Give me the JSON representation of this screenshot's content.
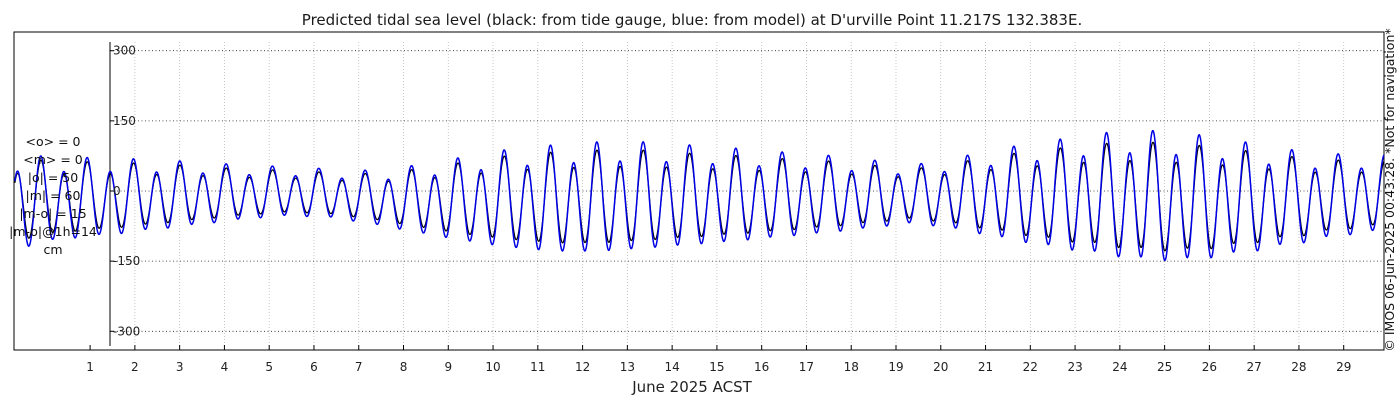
{
  "chart_data": {
    "type": "line",
    "title": "Predicted tidal sea level (black: from tide gauge, blue: from model) at D'urville Point 11.217S 132.383E.",
    "xlabel": "June 2025 ACST",
    "ylabel": "",
    "xlim": [
      -0.7,
      29.9
    ],
    "ylim": [
      -340,
      340
    ],
    "y_ticks": [
      300,
      150,
      0,
      -150,
      -300
    ],
    "y_tick_labels": [
      "300",
      "150",
      "0",
      "-150",
      "-300"
    ],
    "x_ticks": [
      1,
      2,
      3,
      4,
      5,
      6,
      7,
      8,
      9,
      10,
      11,
      12,
      13,
      14,
      15,
      16,
      17,
      18,
      19,
      20,
      21,
      22,
      23,
      24,
      25,
      26,
      27,
      28,
      29
    ],
    "x_tick_labels": [
      "1",
      "2",
      "3",
      "4",
      "5",
      "6",
      "7",
      "8",
      "9",
      "10",
      "11",
      "12",
      "13",
      "14",
      "15",
      "16",
      "17",
      "18",
      "19",
      "20",
      "21",
      "22",
      "23",
      "24",
      "25",
      "26",
      "27",
      "28",
      "29"
    ],
    "grid": true,
    "series": [
      {
        "name": "tide gauge",
        "color": "#000000",
        "high_per_day": [
          60,
          56,
          55,
          52,
          48,
          42,
          40,
          35,
          32,
          42,
          55,
          68,
          74,
          78,
          78,
          72,
          68,
          62,
          58,
          50,
          42,
          55,
          70,
          80,
          90,
          95,
          90,
          82,
          70,
          60,
          58
        ],
        "low_per_day": [
          -110,
          -92,
          -85,
          -75,
          -65,
          -55,
          -48,
          -52,
          -65,
          -82,
          -98,
          -110,
          -118,
          -118,
          -112,
          -105,
          -98,
          -90,
          -82,
          -72,
          -62,
          -75,
          -92,
          -108,
          -120,
          -132,
          -135,
          -125,
          -110,
          -95,
          -80
        ]
      },
      {
        "name": "model",
        "color": "#0000e6",
        "high_per_day": [
          68,
          64,
          63,
          60,
          56,
          50,
          47,
          42,
          38,
          50,
          65,
          80,
          88,
          94,
          94,
          88,
          82,
          75,
          69,
          60,
          50,
          65,
          83,
          96,
          110,
          118,
          112,
          100,
          84,
          72,
          70
        ],
        "low_per_day": [
          -128,
          -107,
          -99,
          -87,
          -76,
          -64,
          -56,
          -60,
          -76,
          -95,
          -113,
          -128,
          -137,
          -137,
          -130,
          -122,
          -114,
          -104,
          -95,
          -84,
          -72,
          -87,
          -107,
          -125,
          -140,
          -154,
          -157,
          -145,
          -128,
          -110,
          -93
        ]
      }
    ],
    "annotations": [
      "<o> = 0",
      "<m> = 0",
      "|o| = 50",
      "|m| = 60",
      "|m-o| = 15",
      "|m-o|@1h=14",
      "cm"
    ],
    "side_note": "© IMOS 06-Jun-2025 00:43:28. *Not for navigation*"
  }
}
